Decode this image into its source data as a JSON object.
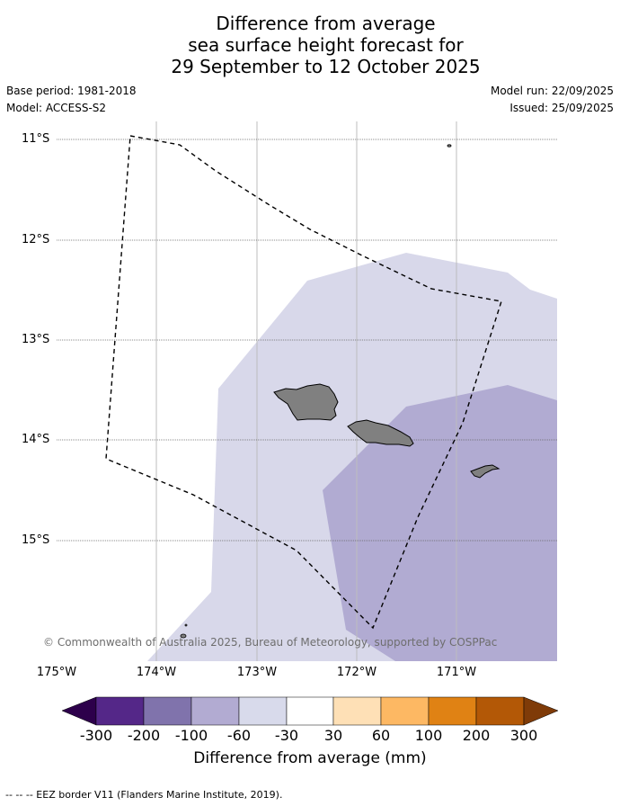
{
  "title": {
    "line1": "Difference from average",
    "line2": "sea surface height forecast for",
    "line3": "29 September to 12 October 2025"
  },
  "meta": {
    "base_period": "Base period: 1981-2018",
    "model": "Model: ACCESS-S2",
    "model_run": "Model run: 22/09/2025",
    "issued": "Issued: 25/09/2025"
  },
  "map": {
    "lat_labels": [
      "11°S",
      "12°S",
      "13°S",
      "14°S",
      "15°S"
    ],
    "lon_labels": [
      "175°W",
      "174°W",
      "173°W",
      "172°W",
      "171°W"
    ],
    "credit": "© Commonwealth of Australia 2025, Bureau of Meteorology, supported by COSPPac",
    "colors": {
      "light_band": "#d8d8ea",
      "mid_band": "#b1abd2",
      "land": "#808080"
    }
  },
  "colorbar": {
    "title": "Difference from average (mm)",
    "ticks": [
      "-300",
      "-200",
      "-100",
      "-60",
      "-30",
      "30",
      "60",
      "100",
      "200",
      "300"
    ],
    "colors": [
      "#2d004b",
      "#542788",
      "#8073ac",
      "#b2abd2",
      "#d8daeb",
      "#ffffff",
      "#fee0b6",
      "#fdb863",
      "#e08214",
      "#b35806",
      "#7f3b08"
    ]
  },
  "footnote": "--  --  -- EEZ border V11 (Flanders Marine Institute, 2019)."
}
